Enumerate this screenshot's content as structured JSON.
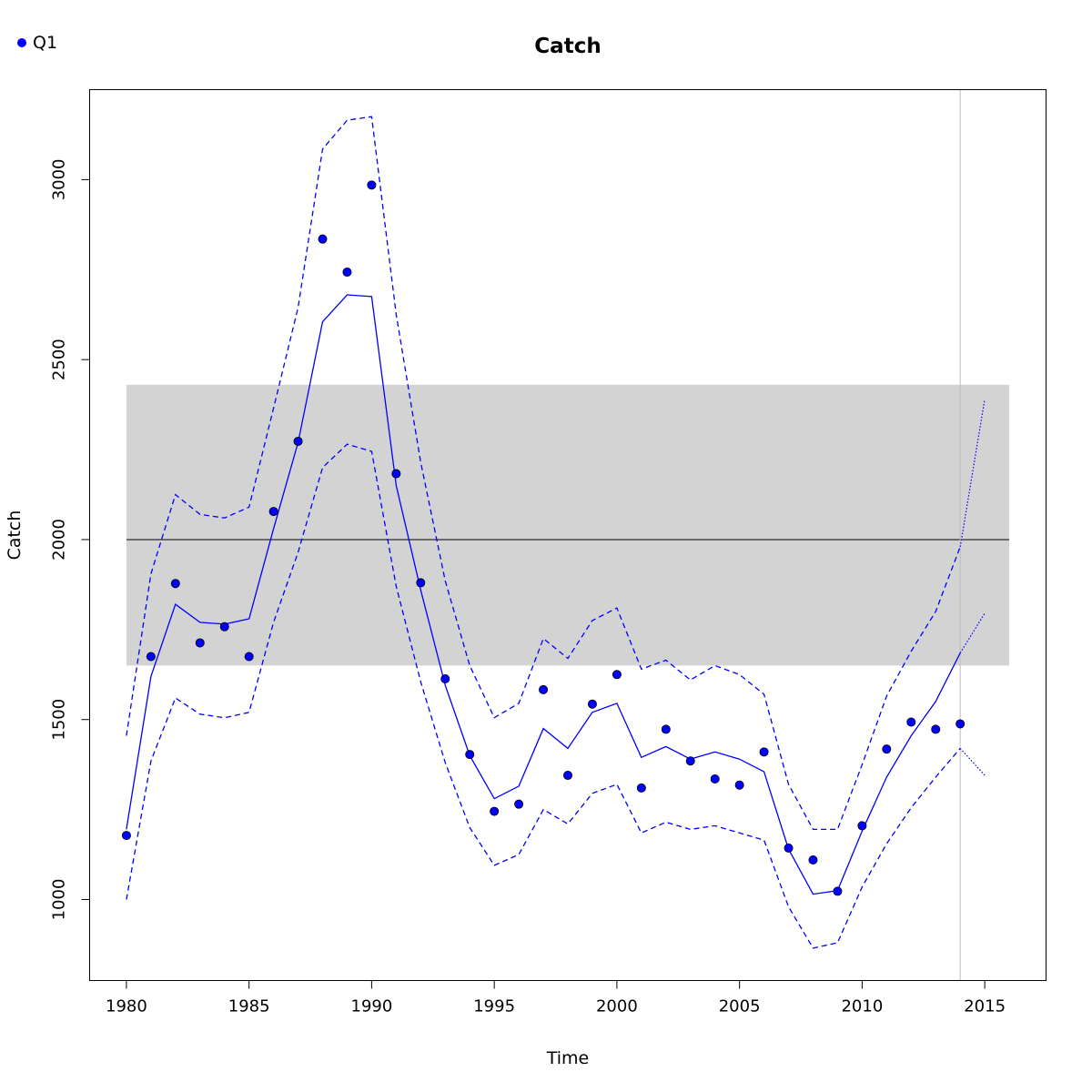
{
  "chart_data": {
    "type": "line",
    "title": "Catch",
    "xlabel": "Time",
    "ylabel": "Catch",
    "xlim": [
      1978.5,
      2017.5
    ],
    "ylim": [
      775,
      3250
    ],
    "x_ticks": [
      1980,
      1985,
      1990,
      1995,
      2000,
      2005,
      2010,
      2015
    ],
    "y_ticks": [
      1000,
      1500,
      2000,
      2500,
      3000
    ],
    "legend": {
      "position": "top-left",
      "entries": [
        {
          "label": "Q1",
          "color": "#0000ff",
          "marker": "filled-circle"
        }
      ]
    },
    "reference": {
      "line": 2000,
      "band": [
        1650,
        2430
      ],
      "band_x": [
        1980,
        2016
      ],
      "band_color": "#d3d3d3",
      "vertical_line_x": 2014
    },
    "observed": {
      "name": "Q1",
      "x": [
        1980,
        1981,
        1982,
        1983,
        1984,
        1985,
        1986,
        1987,
        1988,
        1989,
        1990,
        1991,
        1992,
        1993,
        1994,
        1995,
        1996,
        1997,
        1998,
        1999,
        2000,
        2001,
        2002,
        2003,
        2004,
        2005,
        2006,
        2007,
        2008,
        2009,
        2010,
        2011,
        2012,
        2013,
        2014
      ],
      "values": [
        1178,
        1675,
        1878,
        1713,
        1758,
        1675,
        2078,
        2273,
        2835,
        2743,
        2985,
        2183,
        1880,
        1613,
        1403,
        1245,
        1265,
        1583,
        1345,
        1543,
        1625,
        1310,
        1473,
        1385,
        1335,
        1318,
        1410,
        1143,
        1110,
        1023,
        1205,
        1418,
        1493,
        1473,
        1488
      ]
    },
    "fitted": {
      "x": [
        1980,
        1981,
        1982,
        1983,
        1984,
        1985,
        1986,
        1987,
        1988,
        1989,
        1990,
        1991,
        1992,
        1993,
        1994,
        1995,
        1996,
        1997,
        1998,
        1999,
        2000,
        2001,
        2002,
        2003,
        2004,
        2005,
        2006,
        2007,
        2008,
        2009,
        2010,
        2011,
        2012,
        2013,
        2014
      ],
      "values": [
        1195,
        1620,
        1820,
        1770,
        1765,
        1780,
        2030,
        2270,
        2605,
        2680,
        2675,
        2150,
        1860,
        1595,
        1400,
        1280,
        1315,
        1475,
        1420,
        1520,
        1545,
        1395,
        1425,
        1390,
        1410,
        1390,
        1355,
        1140,
        1015,
        1025,
        1190,
        1340,
        1455,
        1550,
        1685
      ],
      "lower": [
        1000,
        1385,
        1560,
        1515,
        1505,
        1520,
        1770,
        1965,
        2200,
        2265,
        2245,
        1870,
        1605,
        1380,
        1200,
        1095,
        1125,
        1250,
        1210,
        1295,
        1320,
        1185,
        1215,
        1195,
        1205,
        1185,
        1165,
        980,
        865,
        880,
        1035,
        1155,
        1255,
        1340,
        1420
      ],
      "upper": [
        1455,
        1905,
        2125,
        2070,
        2060,
        2090,
        2365,
        2645,
        3085,
        3165,
        3175,
        2625,
        2215,
        1885,
        1650,
        1505,
        1545,
        1725,
        1670,
        1775,
        1810,
        1640,
        1665,
        1610,
        1650,
        1625,
        1570,
        1320,
        1195,
        1195,
        1375,
        1565,
        1690,
        1800,
        1980
      ]
    },
    "projection": {
      "x": [
        2014,
        2015
      ],
      "median": [
        1685,
        1795
      ],
      "lower": [
        1420,
        1345
      ],
      "upper": [
        1980,
        2390
      ]
    }
  }
}
